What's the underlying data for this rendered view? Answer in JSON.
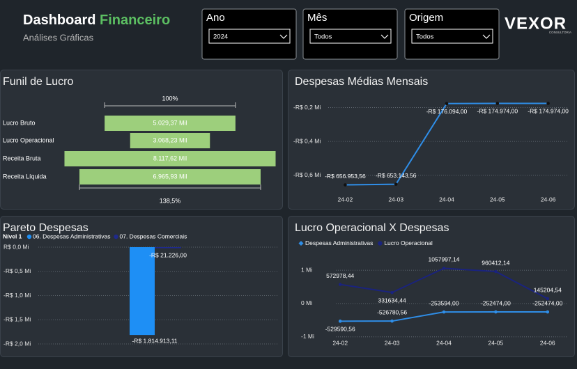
{
  "header": {
    "title": "Dashboard",
    "title_accent": "Financeiro",
    "subtitle": "Análises Gráficas"
  },
  "filters": [
    {
      "label": "Ano",
      "value": "2024"
    },
    {
      "label": "Mês",
      "value": "Todos"
    },
    {
      "label": "Origem",
      "value": "Todos"
    }
  ],
  "logo": {
    "text": "VEXOR",
    "sub": "CONSULTORIA"
  },
  "chart_data": [
    {
      "type": "funnel",
      "title": "Funil de Lucro",
      "categories": [
        "Lucro Bruto",
        "Lucro Operacional",
        "Receita Bruta",
        "Receita Líquida"
      ],
      "values": [
        5029.37,
        3068.23,
        8117.62,
        6965.93
      ],
      "value_labels": [
        "5.029,37 Mil",
        "3.068,23 Mil",
        "8.117,62 Mil",
        "6.965,93 Mil"
      ],
      "color": "#9dcf7c",
      "top_label": "100%",
      "bottom_label": "138,5%"
    },
    {
      "type": "line",
      "title": "Despesas Médias Mensais",
      "categories": [
        "24-02",
        "24-03",
        "24-04",
        "24-05",
        "24-06"
      ],
      "values": [
        -656953.56,
        -653143.56,
        -176094.0,
        -174974.0,
        -174974.0
      ],
      "value_labels": [
        "-R$ 656.953,56",
        "-R$ 653.143,56",
        "-R$ 176.094,00",
        "-R$ 174.974,00",
        "-R$ 174.974,00"
      ],
      "color": "#2f8ee8",
      "ylim": [
        -700000,
        -140000
      ],
      "yticks": [
        {
          "value": -200000,
          "label": "-R$ 0,2 Mi"
        },
        {
          "value": -400000,
          "label": "-R$ 0,4 Mi"
        },
        {
          "value": -600000,
          "label": "-R$ 0,6 Mi"
        }
      ],
      "grid": true
    },
    {
      "type": "waterfall",
      "title": "Pareto Despesas",
      "legend_title": "Nível 1",
      "series": [
        {
          "name": "06. Despesas Administrativas",
          "color": "#1e8ff5",
          "values": [
            -1814913.11
          ],
          "value_labels": [
            "-R$ 1.814.913,11"
          ]
        },
        {
          "name": "07. Despesas Comerciais",
          "color": "#1f2a8c",
          "values": [
            -21226.0
          ],
          "value_labels": [
            "-R$ 21.226,00"
          ]
        }
      ],
      "ylim": [
        -2000000,
        0
      ],
      "yticks": [
        {
          "value": 0,
          "label": "R$ 0,0 Mi"
        },
        {
          "value": -500000,
          "label": "-R$ 0,5 Mi"
        },
        {
          "value": -1000000,
          "label": "-R$ 1,0 Mi"
        },
        {
          "value": -1500000,
          "label": "-R$ 1,5 Mi"
        },
        {
          "value": -2000000,
          "label": "-R$ 2,0 Mi"
        }
      ],
      "grid": true
    },
    {
      "type": "line",
      "title": "Lucro Operacional X Despesas",
      "categories": [
        "24-02",
        "24-03",
        "24-04",
        "24-05",
        "24-06"
      ],
      "series": [
        {
          "name": "Despesas Administrativas",
          "color": "#2f8ee8",
          "values": [
            -529590.56,
            -526780.56,
            -253594.0,
            -252474.0,
            -252474.0
          ],
          "value_labels": [
            "-529590,56",
            "-526780,56",
            "-253594,00",
            "-252474,00",
            "-252474,00"
          ]
        },
        {
          "name": "Lucro Operacional",
          "color": "#1a237e",
          "values": [
            572978.44,
            331634.44,
            1057997.14,
            960412.14,
            145204.54
          ],
          "value_labels": [
            "572978,44",
            "331634,44",
            "1057997,14",
            "960412,14",
            "145204,54"
          ]
        }
      ],
      "ylim": [
        -1150000,
        1400000
      ],
      "yticks": [
        {
          "value": 1000000,
          "label": "1 Mi"
        },
        {
          "value": 0,
          "label": "0 Mi"
        },
        {
          "value": -1000000,
          "label": "-1 Mi"
        }
      ],
      "grid": true,
      "legend": "top-left"
    }
  ]
}
